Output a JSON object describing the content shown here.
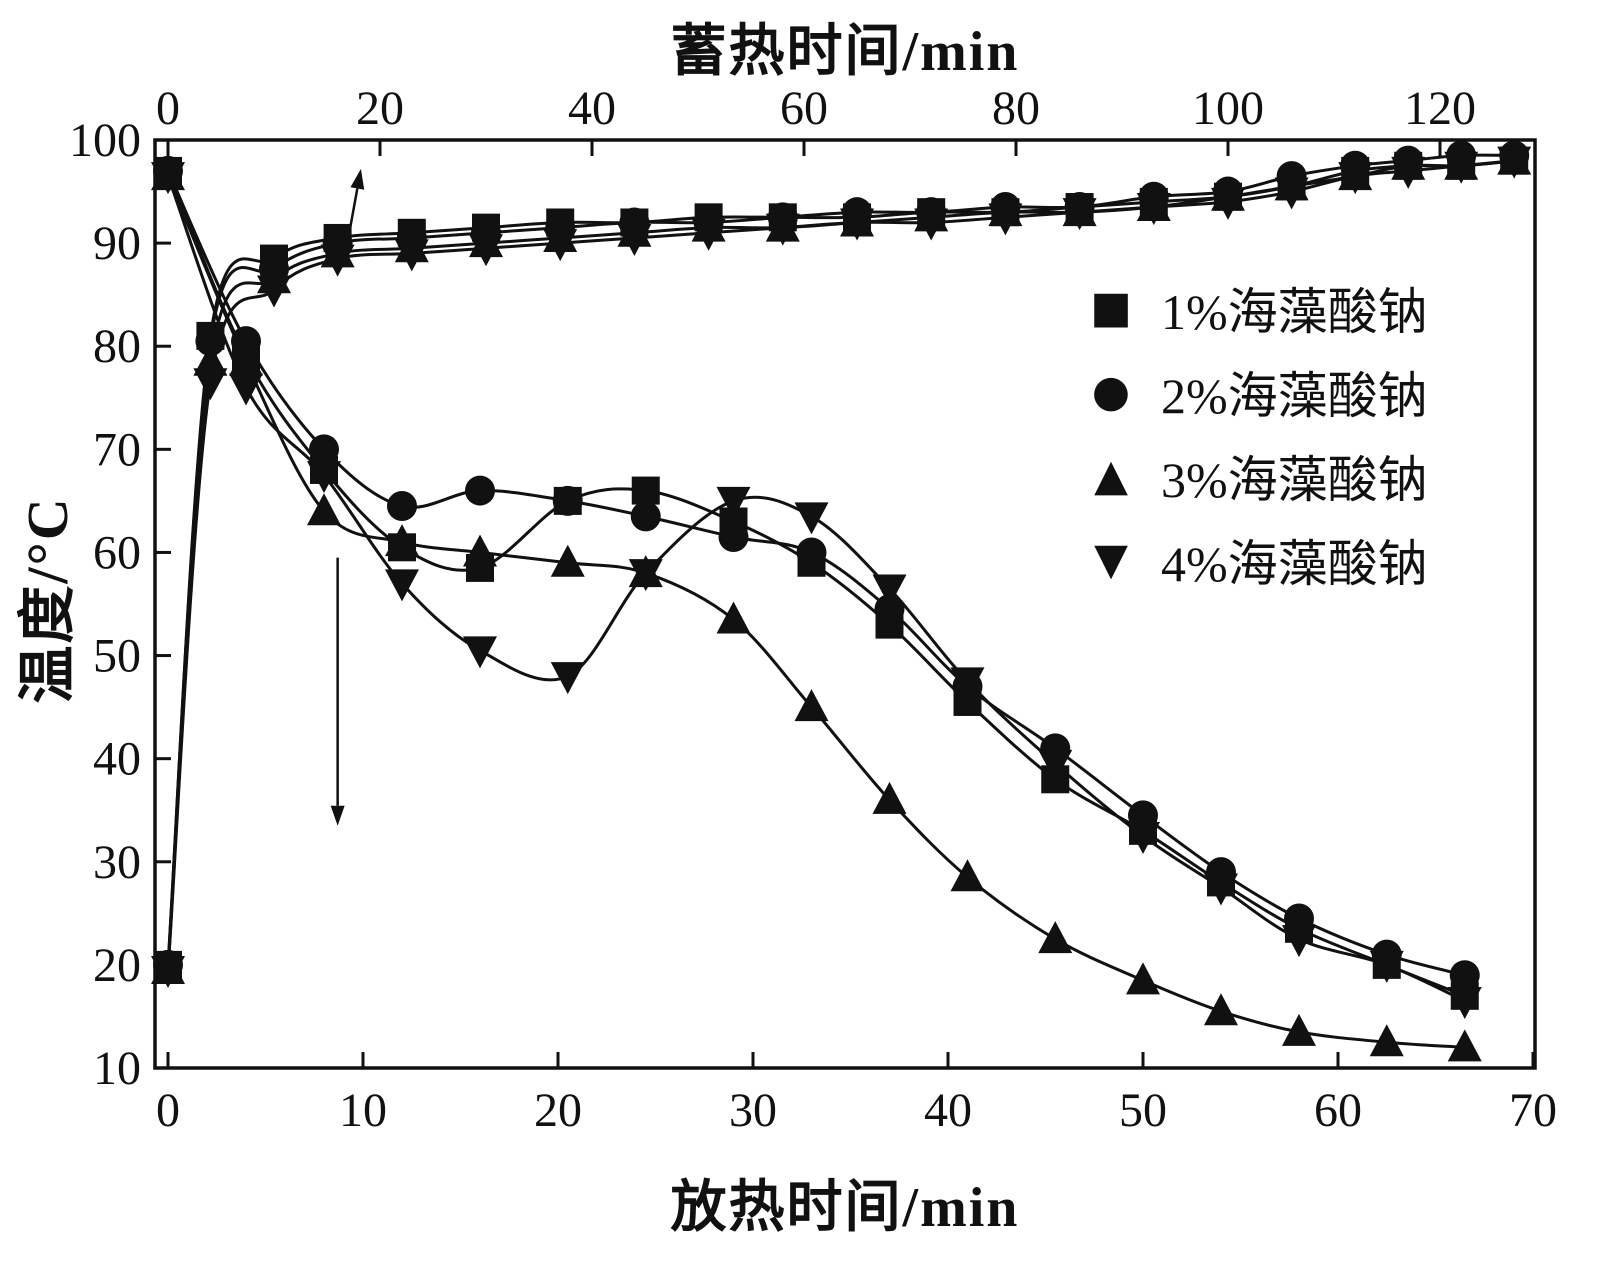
{
  "figure_type": "line-chart",
  "legend": {
    "entries": [
      {
        "id": "1pct",
        "glyph": "■",
        "marker": "square",
        "label": "1%海藻酸钠"
      },
      {
        "id": "2pct",
        "glyph": "●",
        "marker": "circle",
        "label": "2%海藻酸钠"
      },
      {
        "id": "3pct",
        "glyph": "▲",
        "marker": "triangle-up",
        "label": "3%海藻酸钠"
      },
      {
        "id": "4pct",
        "glyph": "▼",
        "marker": "triangle-down",
        "label": "4%海藻酸钠"
      }
    ]
  },
  "chart_data": {
    "type": "line",
    "title": "",
    "grid": false,
    "legend_position": "inside-upper-right",
    "line_color": "#111111",
    "y_axis": {
      "label": "温度/°C",
      "min": 10,
      "max": 100,
      "ticks": [
        10,
        20,
        30,
        40,
        50,
        60,
        70,
        80,
        90,
        100
      ]
    },
    "top_x_axis": {
      "label": "蓄热时间/min",
      "min": 0,
      "max": 129,
      "ticks": [
        0,
        20,
        40,
        60,
        80,
        100,
        120
      ]
    },
    "bottom_x_axis": {
      "label": "放热时间/min",
      "min": 0,
      "max": 70,
      "ticks": [
        0,
        10,
        20,
        30,
        40,
        50,
        60,
        70
      ]
    },
    "heating_series": [
      {
        "id": "1pct",
        "name": "1%海藻酸钠",
        "marker": "square",
        "x": [
          0,
          4,
          10,
          16,
          23,
          30,
          37,
          44,
          51,
          58,
          65,
          72,
          79,
          86,
          93,
          100,
          106,
          112,
          117,
          122,
          127
        ],
        "y": [
          20,
          81,
          88.5,
          90.5,
          91,
          91.5,
          92,
          92,
          92.5,
          92.5,
          92.5,
          93,
          93,
          93.5,
          94,
          94.5,
          95.5,
          97,
          97.5,
          97.5,
          98
        ]
      },
      {
        "id": "2pct",
        "name": "2%海藻酸钠",
        "marker": "circle",
        "x": [
          0,
          4,
          10,
          16,
          23,
          30,
          37,
          44,
          51,
          58,
          65,
          72,
          79,
          86,
          93,
          100,
          106,
          112,
          117,
          122,
          127
        ],
        "y": [
          20,
          80.5,
          87.5,
          90,
          90.5,
          91,
          91.5,
          92,
          92,
          92.5,
          93,
          93,
          93.5,
          93.5,
          94.5,
          95,
          96.5,
          97.5,
          98,
          98.5,
          98.5
        ]
      },
      {
        "id": "3pct",
        "name": "3%海藻酸钠",
        "marker": "triangle-up",
        "x": [
          0,
          4,
          10,
          16,
          23,
          30,
          37,
          44,
          51,
          58,
          65,
          72,
          79,
          86,
          93,
          100,
          106,
          112,
          117,
          122,
          127
        ],
        "y": [
          19.5,
          78.5,
          86.5,
          89,
          89.5,
          90,
          90.5,
          91,
          91.5,
          91.5,
          92,
          92.5,
          93,
          93,
          93.5,
          94.5,
          95.5,
          96.5,
          97.5,
          97.5,
          98
        ]
      },
      {
        "id": "4pct",
        "name": "4%海藻酸钠",
        "marker": "triangle-down",
        "x": [
          0,
          4,
          10,
          16,
          23,
          30,
          37,
          44,
          51,
          58,
          65,
          72,
          79,
          86,
          93,
          100,
          106,
          112,
          117,
          122,
          127
        ],
        "y": [
          19.5,
          76.5,
          85.5,
          88.5,
          89,
          89.5,
          90,
          90.5,
          91,
          91.5,
          92,
          92,
          92.5,
          93,
          93.5,
          94,
          95,
          96.5,
          97,
          97.5,
          98
        ]
      }
    ],
    "cooling_series": [
      {
        "id": "1pct",
        "name": "1%海藻酸钠",
        "marker": "square",
        "x": [
          0,
          4,
          8,
          12,
          16,
          20.5,
          24.5,
          29,
          33,
          37,
          41,
          45.5,
          50,
          54,
          58,
          62.5,
          66.5
        ],
        "y": [
          97,
          79,
          68,
          60.5,
          58.5,
          65,
          66,
          63,
          59,
          53,
          45.5,
          38,
          33,
          28,
          23.5,
          20,
          17
        ]
      },
      {
        "id": "2pct",
        "name": "2%海藻酸钠",
        "marker": "circle",
        "x": [
          0,
          4,
          8,
          12,
          16,
          20.5,
          24.5,
          29,
          33,
          37,
          41,
          45.5,
          50,
          54,
          58,
          62.5,
          66.5
        ],
        "y": [
          97,
          80.5,
          70,
          64.5,
          66,
          65,
          63.5,
          61.5,
          60,
          54.5,
          47,
          41,
          34.5,
          29,
          24.5,
          21,
          19
        ]
      },
      {
        "id": "3pct",
        "name": "3%海藻酸钠",
        "marker": "triangle-up",
        "x": [
          0,
          4,
          8,
          12,
          16,
          20.5,
          24.5,
          29,
          33,
          37,
          41,
          45.5,
          50,
          54,
          58,
          62.5,
          66.5
        ],
        "y": [
          96.5,
          78.5,
          64,
          61,
          60,
          59,
          58,
          53.5,
          45,
          36,
          28.5,
          22.5,
          18.5,
          15.5,
          13.5,
          12.5,
          12
        ]
      },
      {
        "id": "4pct",
        "name": "4%海藻酸钠",
        "marker": "triangle-down",
        "x": [
          0,
          4,
          8,
          12,
          16,
          20.5,
          24.5,
          29,
          33,
          37,
          41,
          45.5,
          50,
          54,
          58,
          62.5,
          66.5
        ],
        "y": [
          96.5,
          76,
          67.5,
          57,
          50.5,
          48,
          58,
          65,
          63.5,
          56.5,
          47.5,
          39.5,
          32.5,
          27.5,
          22.5,
          20,
          16.5
        ]
      }
    ],
    "annotations": [
      {
        "id": "arrow-to-top-axis",
        "type": "arrow",
        "x_axis": "top",
        "from": {
          "t": 16.8,
          "temp": 89.3
        },
        "to": {
          "t": 18.2,
          "temp": 97.2
        }
      },
      {
        "id": "arrow-to-bottom-axis",
        "type": "arrow",
        "x_axis": "bottom",
        "from": {
          "t": 8.7,
          "temp": 59.5
        },
        "to": {
          "t": 8.7,
          "temp": 33.5
        }
      }
    ]
  }
}
